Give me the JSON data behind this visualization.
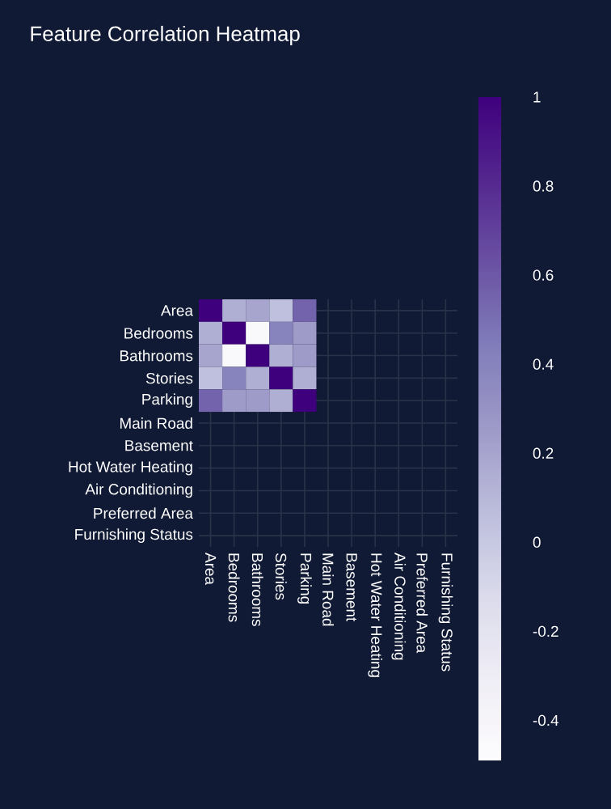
{
  "chart_data": {
    "type": "heatmap",
    "title": "Feature Correlation Heatmap",
    "categories": [
      "Area",
      "Bedrooms",
      "Bathrooms",
      "Stories",
      "Parking",
      "Main Road",
      "Basement",
      "Hot Water Heating",
      "Air Conditioning",
      "Preferred Area",
      "Furnishing Status"
    ],
    "y_categories": [
      "Area",
      "Bedrooms",
      "Bathrooms",
      "Stories",
      "Parking",
      "Main Road",
      "Basement",
      "Hot Water Heating",
      "Air Conditioning",
      "Preferred Area",
      "Furnishing Status"
    ],
    "cells": [
      [
        1,
        0.15,
        0.2,
        0.05,
        0.55,
        null,
        null,
        null,
        null,
        null,
        null
      ],
      [
        0.15,
        1,
        -0.45,
        0.4,
        0.25,
        null,
        null,
        null,
        null,
        null,
        null
      ],
      [
        0.2,
        -0.45,
        1,
        0.15,
        0.25,
        null,
        null,
        null,
        null,
        null,
        null
      ],
      [
        0.05,
        0.4,
        0.15,
        1,
        0.15,
        null,
        null,
        null,
        null,
        null,
        null
      ],
      [
        0.55,
        0.25,
        0.25,
        0.15,
        1,
        null,
        null,
        null,
        null,
        null,
        null
      ],
      [
        null,
        null,
        null,
        null,
        null,
        null,
        null,
        null,
        null,
        null,
        null
      ],
      [
        null,
        null,
        null,
        null,
        null,
        null,
        null,
        null,
        null,
        null,
        null
      ],
      [
        null,
        null,
        null,
        null,
        null,
        null,
        null,
        null,
        null,
        null,
        null
      ],
      [
        null,
        null,
        null,
        null,
        null,
        null,
        null,
        null,
        null,
        null,
        null
      ],
      [
        null,
        null,
        null,
        null,
        null,
        null,
        null,
        null,
        null,
        null,
        null
      ],
      [
        null,
        null,
        null,
        null,
        null,
        null,
        null,
        null,
        null,
        null,
        null
      ]
    ],
    "clim": [
      -0.49,
      1
    ],
    "cticks": [
      -0.4,
      -0.2,
      0,
      0.2,
      0.4,
      0.6,
      0.8,
      1
    ],
    "grid": true
  }
}
